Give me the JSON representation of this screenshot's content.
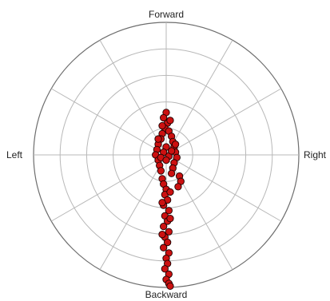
{
  "chart_data": {
    "type": "scatter",
    "coordinate_system": "polar",
    "title": "",
    "direction_labels": {
      "top": "Forward",
      "right": "Right",
      "bottom": "Backward",
      "left": "Left"
    },
    "rings": 5,
    "spokes_degrees": 30,
    "r_max": 5,
    "grid": true,
    "marker_color": "#cc1111",
    "marker_edge_color": "#1a0000",
    "series": [
      {
        "points": [
          {
            "x": 0.0,
            "y": 1.6
          },
          {
            "x": -0.1,
            "y": 1.4
          },
          {
            "x": 0.05,
            "y": 1.2
          },
          {
            "x": -0.05,
            "y": 1.0
          },
          {
            "x": 0.1,
            "y": 0.9
          },
          {
            "x": -0.15,
            "y": 0.8
          },
          {
            "x": 0.2,
            "y": 0.7
          },
          {
            "x": -0.2,
            "y": 0.6
          },
          {
            "x": 0.25,
            "y": 0.5
          },
          {
            "x": -0.3,
            "y": 0.4
          },
          {
            "x": 0.3,
            "y": 0.3
          },
          {
            "x": -0.35,
            "y": 0.2
          },
          {
            "x": 0.35,
            "y": 0.1
          },
          {
            "x": -0.4,
            "y": 0.0
          },
          {
            "x": 0.4,
            "y": -0.1
          },
          {
            "x": -0.3,
            "y": -0.2
          },
          {
            "x": 0.3,
            "y": -0.3
          },
          {
            "x": -0.25,
            "y": -0.4
          },
          {
            "x": 0.25,
            "y": -0.5
          },
          {
            "x": -0.2,
            "y": -0.6
          },
          {
            "x": 0.2,
            "y": -0.7
          },
          {
            "x": 0.5,
            "y": -0.8
          },
          {
            "x": 0.55,
            "y": -1.0
          },
          {
            "x": 0.45,
            "y": -1.2
          },
          {
            "x": -0.15,
            "y": -0.9
          },
          {
            "x": -0.1,
            "y": -1.1
          },
          {
            "x": 0.0,
            "y": -1.3
          },
          {
            "x": -0.05,
            "y": -1.5
          },
          {
            "x": 0.05,
            "y": -1.7
          },
          {
            "x": -0.1,
            "y": -1.9
          },
          {
            "x": 0.1,
            "y": -2.1
          },
          {
            "x": -0.05,
            "y": -2.3
          },
          {
            "x": 0.05,
            "y": -2.5
          },
          {
            "x": -0.1,
            "y": -2.7
          },
          {
            "x": 0.1,
            "y": -2.9
          },
          {
            "x": -0.05,
            "y": -3.1
          },
          {
            "x": 0.05,
            "y": -3.3
          },
          {
            "x": -0.1,
            "y": -3.5
          },
          {
            "x": 0.1,
            "y": -3.7
          },
          {
            "x": 0.0,
            "y": -3.9
          },
          {
            "x": 0.05,
            "y": -4.1
          },
          {
            "x": -0.05,
            "y": -4.3
          },
          {
            "x": 0.1,
            "y": -4.5
          },
          {
            "x": 0.0,
            "y": -4.7
          },
          {
            "x": 0.1,
            "y": -4.85
          },
          {
            "x": 0.15,
            "y": -4.95
          },
          {
            "x": -0.15,
            "y": -3.0
          },
          {
            "x": 0.15,
            "y": -2.4
          },
          {
            "x": -0.15,
            "y": -1.8
          },
          {
            "x": 0.15,
            "y": -1.4
          },
          {
            "x": -0.3,
            "y": 0.6
          },
          {
            "x": 0.35,
            "y": 0.4
          },
          {
            "x": 0.0,
            "y": 0.3
          },
          {
            "x": 0.1,
            "y": -0.05
          },
          {
            "x": -0.1,
            "y": 0.1
          },
          {
            "x": 0.2,
            "y": 0.15
          },
          {
            "x": -0.2,
            "y": -0.1
          },
          {
            "x": 0.0,
            "y": -0.2
          },
          {
            "x": 0.15,
            "y": 1.3
          },
          {
            "x": -0.15,
            "y": 1.1
          }
        ]
      }
    ]
  }
}
